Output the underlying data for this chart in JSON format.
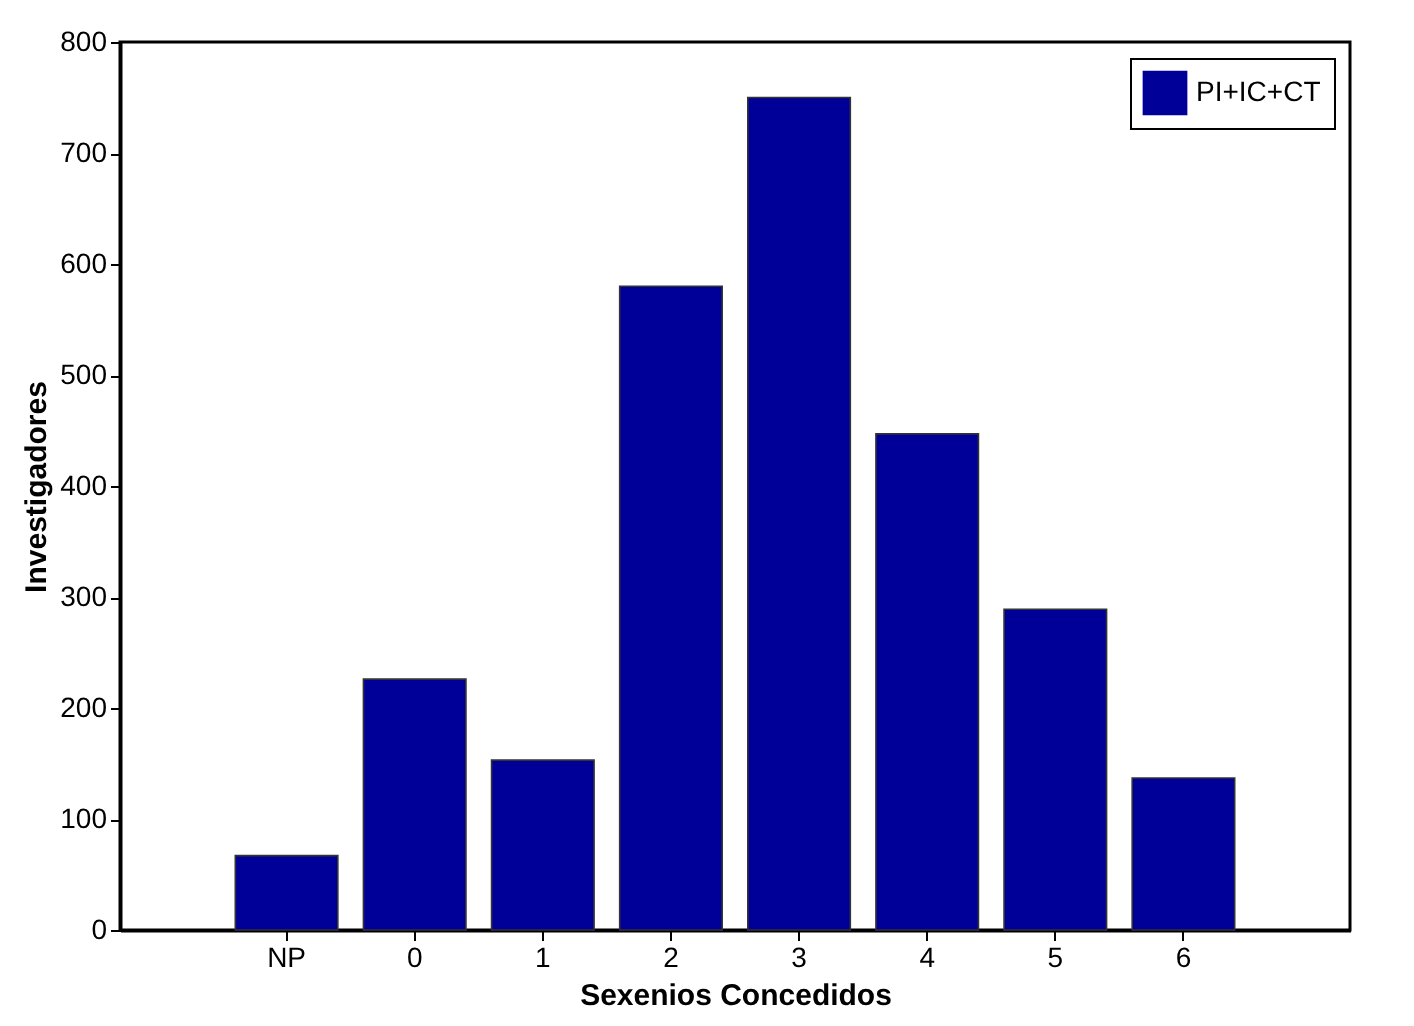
{
  "chart_data": {
    "type": "bar",
    "xlabel": "Sexenios Concedidos",
    "ylabel": "Investigadores",
    "categories": [
      "NP",
      "0",
      "1",
      "2",
      "3",
      "4",
      "5",
      "6"
    ],
    "series": [
      {
        "name": "PI+IC+CT",
        "color": "#000099",
        "values": [
          67,
          226,
          153,
          580,
          750,
          447,
          289,
          137
        ]
      }
    ],
    "ylim": [
      0,
      800
    ],
    "yticks": [
      0,
      100,
      200,
      300,
      400,
      500,
      600,
      700,
      800
    ],
    "grid": false,
    "legend": "top right"
  }
}
